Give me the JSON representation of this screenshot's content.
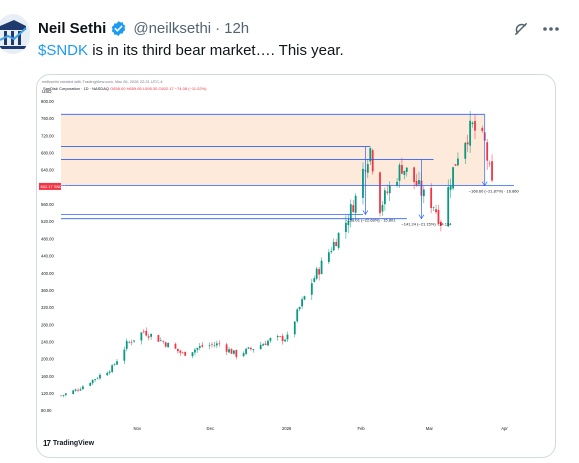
{
  "tweet": {
    "author_name": "Neil Sethi",
    "handle": "@neilksethi",
    "separator": "·",
    "time": "12h",
    "text_cashtag": "$SNDK",
    "text_rest": " is in its third bear market…. This year."
  },
  "icons": {
    "avatar": "avatar-logo",
    "verified": "verified-badge-icon",
    "grok": "grok-icon",
    "more": "more-icon",
    "tradingview": "tradingview-logo-icon"
  },
  "colors": {
    "verified": "#1d9bf0",
    "link": "#1d9bf0",
    "up_candle": "#089981",
    "down_candle": "#f23645",
    "level_line": "#2962ff",
    "price_label": "#f23645",
    "range_fill": "#fdeadb"
  },
  "chart_header": {
    "created_by": "neilksethi created with TradingView.com, Mar 26, 2026 22:21 UTC-4",
    "symbol": "SanDisk Corporation · 1D · NASDAQ",
    "o": "O656.00",
    "h": "H659.65",
    "l": "L595.30",
    "c": "C602.17",
    "change": "−74.08 (−11.02%)",
    "currency": "USD"
  },
  "chart_data": {
    "type": "candlestick",
    "title": "SanDisk Corporation · 1D · NASDAQ",
    "y_ticks": [
      "800.00",
      "760.00",
      "720.00",
      "680.00",
      "640.00",
      "600.00",
      "560.00",
      "520.00",
      "480.00",
      "440.00",
      "400.00",
      "360.00",
      "320.00",
      "280.00",
      "240.00",
      "200.00",
      "160.00",
      "120.00",
      "80.00"
    ],
    "ylim": [
      70,
      815
    ],
    "x_ticks": [
      "Nov",
      "Dec",
      "2026",
      "Feb",
      "Mar",
      "Apr"
    ],
    "current_price_label": "602.17",
    "current_price_secondary": "SNDK",
    "levels": [
      {
        "price": 770,
        "x_from": "2025-10-01",
        "x_to": "2026-03-24"
      },
      {
        "price": 695,
        "x_from": "2025-10-01",
        "x_to": "2026-02-05"
      },
      {
        "price": 665,
        "x_from": "2025-10-01",
        "x_to": "2026-03-03"
      },
      {
        "price": 604,
        "x_from": "2025-10-01",
        "x_to": "2026-04-05"
      },
      {
        "price": 537,
        "x_from": "2025-10-01",
        "x_to": "2026-02-02"
      },
      {
        "price": 527,
        "x_from": "2025-10-01",
        "x_to": "2026-02-20"
      }
    ],
    "shaded_range": [
      604,
      770
    ],
    "measurements": [
      {
        "label": "−158.01 (−22.68%) · 15.801",
        "from_price": 695,
        "to_price": 537,
        "x": "2026-02-03"
      },
      {
        "label": "−141.24 (−21.15%) · 14.124",
        "from_price": 665,
        "to_price": 527,
        "x": "2026-02-26"
      },
      {
        "label": "−168.60 (−21.87%) · 16.860",
        "from_price": 770,
        "to_price": 604,
        "x": "2026-03-24"
      }
    ],
    "watermark": "TradingView"
  }
}
